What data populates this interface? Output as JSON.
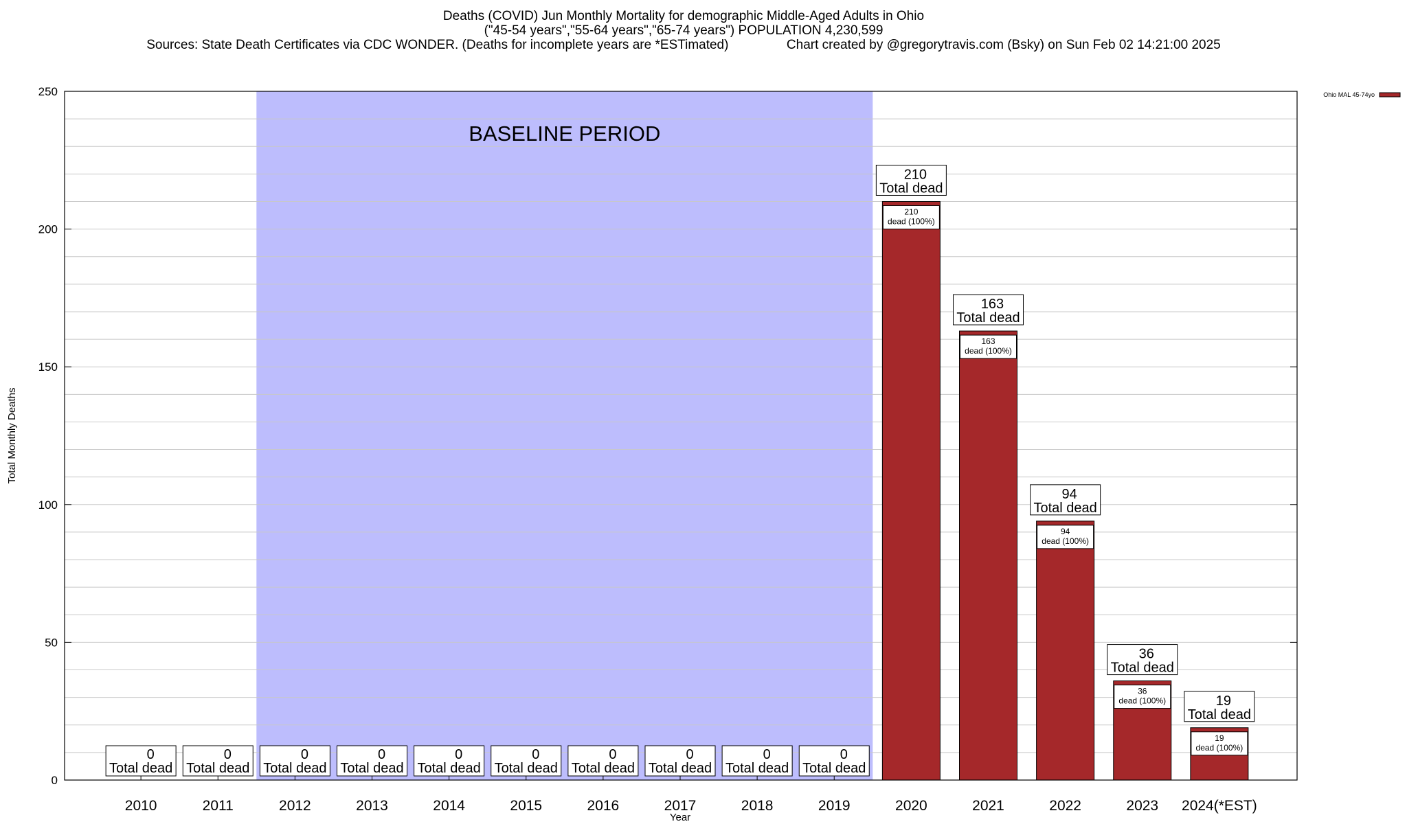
{
  "header": {
    "title_line1": "Deaths (COVID) Jun Monthly Mortality for demographic Middle-Aged Adults in Ohio",
    "title_line2": "(\"45-54 years\",\"55-64 years\",\"65-74 years\") POPULATION 4,230,599",
    "title_line3": "Sources: State Death Certificates via CDC WONDER. (Deaths for incomplete years are *ESTimated)                Chart created by @gregorytravis.com (Bsky) on Sun Feb 02 14:21:00 2025"
  },
  "chart_data": {
    "type": "bar",
    "xlabel": "Year",
    "ylabel": "Total Monthly Deaths",
    "ylim": [
      0,
      250
    ],
    "yticks": [
      0,
      50,
      100,
      150,
      200,
      250
    ],
    "grid": true,
    "legend": {
      "position": "top-right",
      "entries": [
        "Ohio MAL 45-74yo"
      ]
    },
    "categories": [
      "2010",
      "2011",
      "2012",
      "2013",
      "2014",
      "2015",
      "2016",
      "2017",
      "2018",
      "2019",
      "2020",
      "2021",
      "2022",
      "2023",
      "2024(*EST)"
    ],
    "series": [
      {
        "name": "Ohio MAL 45-74yo",
        "values": [
          0,
          0,
          0,
          0,
          0,
          0,
          0,
          0,
          0,
          0,
          210,
          163,
          94,
          36,
          19
        ]
      }
    ],
    "total_label": "Total dead",
    "inner_label": "dead (100%)",
    "baseline": {
      "label": "BASELINE PERIOD",
      "start": "2012",
      "end": "2019"
    },
    "colors": {
      "bar": "#a5282a",
      "baseline": "#bdbdfd",
      "grid": "#c8c8c8"
    }
  }
}
